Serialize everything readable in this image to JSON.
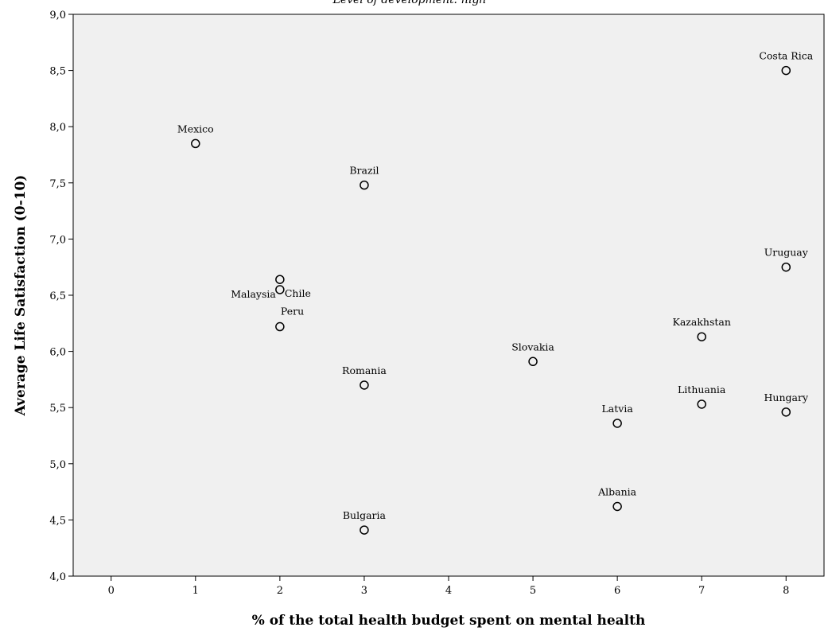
{
  "chart_data": {
    "type": "scatter",
    "subtitle": "Level of development: high",
    "xlabel": "% of the total health budget spent on mental health",
    "ylabel": "Average Life Satisfaction (0-10)",
    "xlim": [
      -0.45,
      8.45
    ],
    "ylim": [
      4.0,
      9.0
    ],
    "xticks": [
      0,
      1,
      2,
      3,
      4,
      5,
      6,
      7,
      8
    ],
    "xtick_labels": [
      "0",
      "1",
      "2",
      "3",
      "4",
      "5",
      "6",
      "7",
      "8"
    ],
    "yticks": [
      4.0,
      4.5,
      5.0,
      5.5,
      6.0,
      6.5,
      7.0,
      7.5,
      8.0,
      8.5,
      9.0
    ],
    "ytick_labels": [
      "4,0",
      "4,5",
      "5,0",
      "5,5",
      "6,0",
      "6,5",
      "7,0",
      "7,5",
      "8,0",
      "8,5",
      "9,0"
    ],
    "grid": false,
    "background": "#f0f0f0",
    "marker": "hollow-circle",
    "points": [
      {
        "label": "Mexico",
        "x": 1,
        "y": 7.85,
        "label_pos": "above"
      },
      {
        "label": "Brazil",
        "x": 3,
        "y": 7.48,
        "label_pos": "above"
      },
      {
        "label": "Costa Rica",
        "x": 8,
        "y": 8.5,
        "label_pos": "above"
      },
      {
        "label": "Uruguay",
        "x": 8,
        "y": 6.75,
        "label_pos": "above"
      },
      {
        "label": "Malaysia",
        "x": 2,
        "y": 6.64,
        "label_pos": "below-left"
      },
      {
        "label": "Chile",
        "x": 2,
        "y": 6.55,
        "label_pos": "right"
      },
      {
        "label": "Peru",
        "x": 2,
        "y": 6.22,
        "label_pos": "above-right"
      },
      {
        "label": "Kazakhstan",
        "x": 7,
        "y": 6.13,
        "label_pos": "above"
      },
      {
        "label": "Slovakia",
        "x": 5,
        "y": 5.91,
        "label_pos": "above"
      },
      {
        "label": "Romania",
        "x": 3,
        "y": 5.7,
        "label_pos": "above"
      },
      {
        "label": "Lithuania",
        "x": 7,
        "y": 5.53,
        "label_pos": "above"
      },
      {
        "label": "Hungary",
        "x": 8,
        "y": 5.46,
        "label_pos": "above"
      },
      {
        "label": "Latvia",
        "x": 6,
        "y": 5.36,
        "label_pos": "above"
      },
      {
        "label": "Albania",
        "x": 6,
        "y": 4.62,
        "label_pos": "above"
      },
      {
        "label": "Bulgaria",
        "x": 3,
        "y": 4.41,
        "label_pos": "above"
      }
    ]
  }
}
